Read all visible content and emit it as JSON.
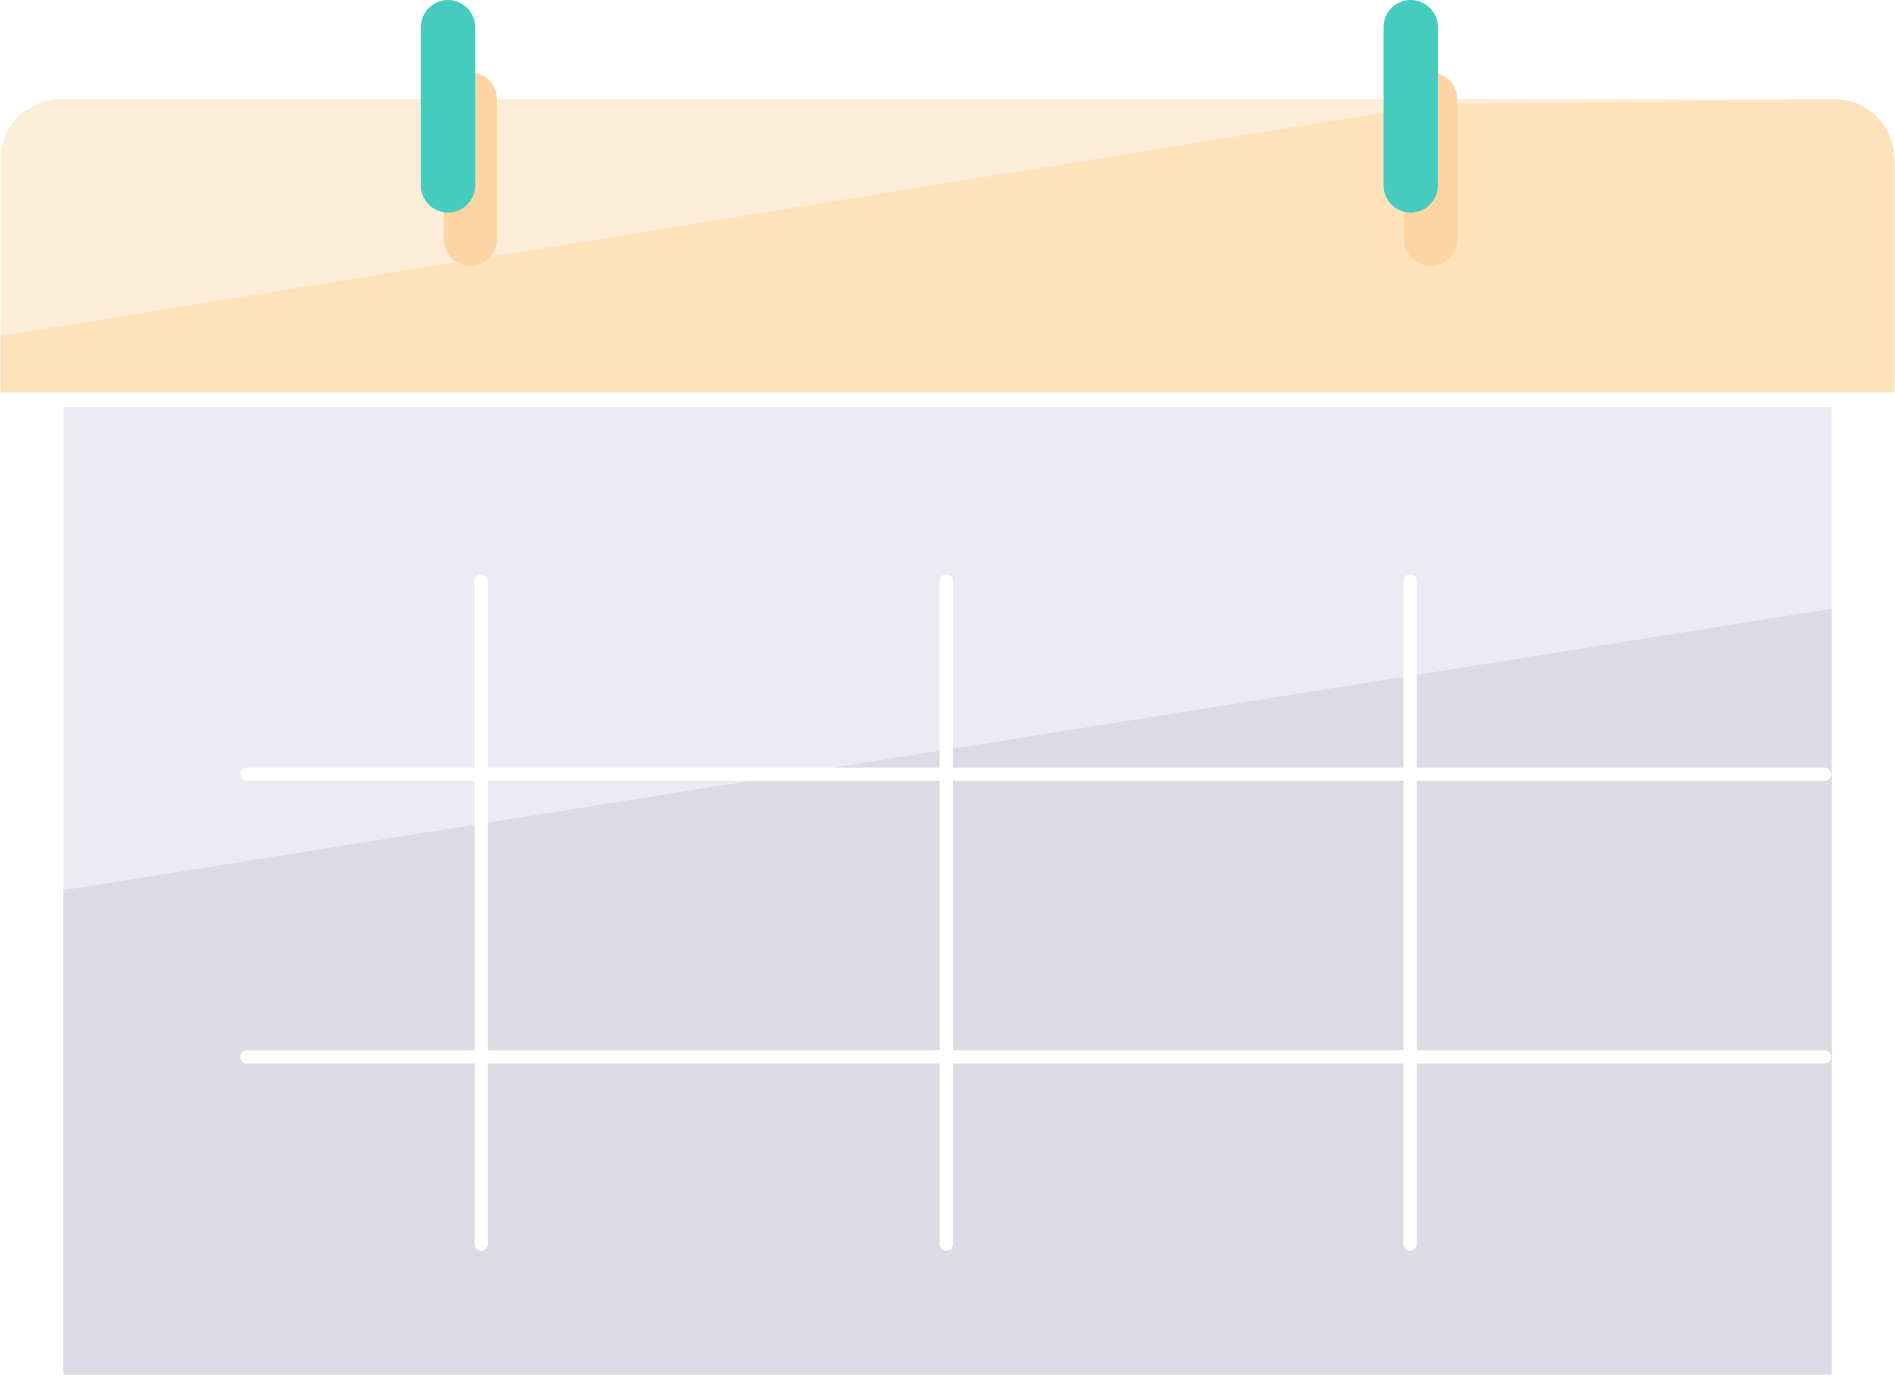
{
  "illustration": {
    "subject": "calendar",
    "colors": {
      "header_light": "#FDEDD9",
      "header_dark": "#FEE2BA",
      "ring_shadow": "#FDD5A4",
      "ring": "#46CCBF",
      "body_light": "#ECEBF1",
      "body_dark": "#DCDAE5",
      "grid_line": "#FFFFFF"
    }
  }
}
